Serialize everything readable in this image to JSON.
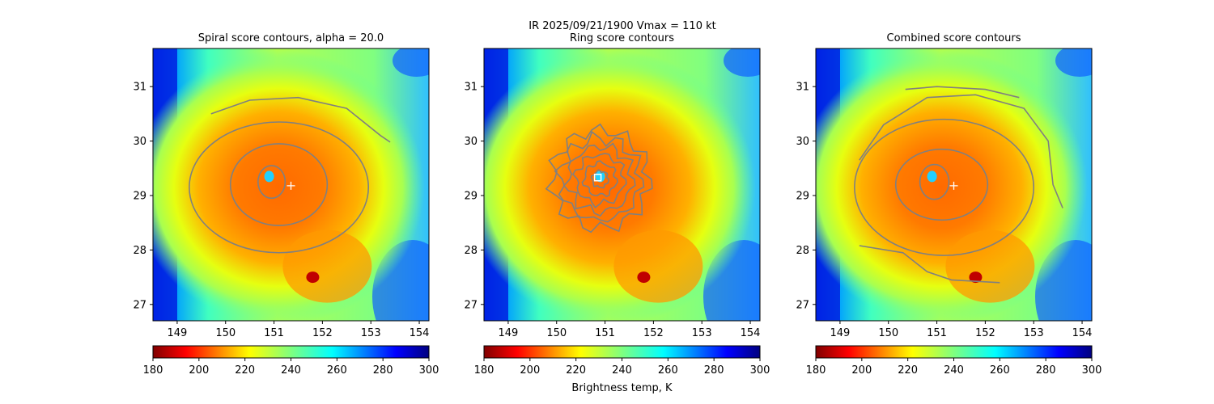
{
  "figure": {
    "suptitle_line1": "IR  2025/09/21/1900    Vmax = 110 kt",
    "colormap": "jet",
    "panel_background_hint": "brightness temperature imagery (jet colormap)"
  },
  "chart_data": [
    {
      "type": "heatmap",
      "title": "Spiral score contours, alpha = 20.0",
      "xlabel": "",
      "ylabel": "",
      "xlim": [
        148.5,
        154.2
      ],
      "ylim": [
        26.7,
        31.7
      ],
      "xticks": [
        149,
        150,
        151,
        152,
        153,
        154
      ],
      "yticks": [
        27,
        28,
        29,
        30,
        31
      ],
      "center_marker": {
        "symbol": "+",
        "lon": 151.35,
        "lat": 29.18
      },
      "eye": {
        "lon": 150.9,
        "lat": 29.35
      },
      "contours": [
        {
          "shape": "ellipse",
          "cx": 150.95,
          "cy": 29.25,
          "rx": 0.28,
          "ry": 0.3
        },
        {
          "shape": "ellipse",
          "cx": 151.1,
          "cy": 29.2,
          "rx": 1.0,
          "ry": 0.75
        },
        {
          "shape": "ellipse",
          "cx": 151.1,
          "cy": 29.15,
          "rx": 1.85,
          "ry": 1.2
        },
        {
          "shape": "open-arc",
          "points": [
            [
              149.7,
              30.5
            ],
            [
              150.5,
              30.75
            ],
            [
              151.5,
              30.8
            ],
            [
              152.5,
              30.6
            ],
            [
              153.2,
              30.1
            ],
            [
              153.4,
              29.98
            ]
          ]
        }
      ],
      "colorbar": {
        "min": 180,
        "max": 300,
        "ticks": [
          180,
          200,
          220,
          240,
          260,
          280,
          300
        ],
        "label": ""
      }
    },
    {
      "type": "heatmap",
      "title": "Ring score contours",
      "xlabel": "",
      "ylabel": "",
      "xlim": [
        148.5,
        154.2
      ],
      "ylim": [
        26.7,
        31.7
      ],
      "xticks": [
        149,
        150,
        151,
        152,
        153,
        154
      ],
      "yticks": [
        27,
        28,
        29,
        30,
        31
      ],
      "center_marker": {
        "symbol": "square",
        "lon": 150.85,
        "lat": 29.33
      },
      "eye": {
        "lon": 150.9,
        "lat": 29.35
      },
      "contours": [
        {
          "shape": "ring-cluster",
          "cx": 150.9,
          "cy": 29.3,
          "rx": 1.0,
          "ry": 0.9
        }
      ],
      "colorbar": {
        "min": 180,
        "max": 300,
        "ticks": [
          180,
          200,
          220,
          240,
          260,
          280,
          300
        ],
        "label": "Brightness temp, K"
      }
    },
    {
      "type": "heatmap",
      "title": "Combined score contours",
      "xlabel": "",
      "ylabel": "",
      "xlim": [
        148.5,
        154.2
      ],
      "ylim": [
        26.7,
        31.7
      ],
      "xticks": [
        149,
        150,
        151,
        152,
        153,
        154
      ],
      "yticks": [
        27,
        28,
        29,
        30,
        31
      ],
      "center_marker": {
        "symbol": "+",
        "lon": 151.35,
        "lat": 29.18
      },
      "eye": {
        "lon": 150.9,
        "lat": 29.35
      },
      "contours": [
        {
          "shape": "ellipse",
          "cx": 150.95,
          "cy": 29.25,
          "rx": 0.3,
          "ry": 0.32
        },
        {
          "shape": "ellipse",
          "cx": 151.1,
          "cy": 29.2,
          "rx": 0.95,
          "ry": 0.65
        },
        {
          "shape": "ellipse",
          "cx": 151.15,
          "cy": 29.15,
          "rx": 1.85,
          "ry": 1.25
        },
        {
          "shape": "open-arc",
          "points": [
            [
              149.4,
              29.65
            ],
            [
              149.9,
              30.3
            ],
            [
              150.8,
              30.8
            ],
            [
              151.8,
              30.85
            ],
            [
              152.8,
              30.6
            ],
            [
              153.3,
              30.0
            ],
            [
              153.4,
              29.2
            ],
            [
              153.6,
              28.77
            ]
          ]
        },
        {
          "shape": "open-arc",
          "points": [
            [
              150.35,
              30.95
            ],
            [
              151.0,
              31.0
            ],
            [
              152.0,
              30.95
            ],
            [
              152.7,
              30.8
            ]
          ]
        },
        {
          "shape": "open-arc",
          "points": [
            [
              149.4,
              28.08
            ],
            [
              150.3,
              27.95
            ],
            [
              150.8,
              27.6
            ],
            [
              151.3,
              27.45
            ],
            [
              152.3,
              27.4
            ]
          ]
        }
      ],
      "colorbar": {
        "min": 180,
        "max": 300,
        "ticks": [
          180,
          200,
          220,
          240,
          260,
          280,
          300
        ],
        "label": ""
      }
    }
  ]
}
